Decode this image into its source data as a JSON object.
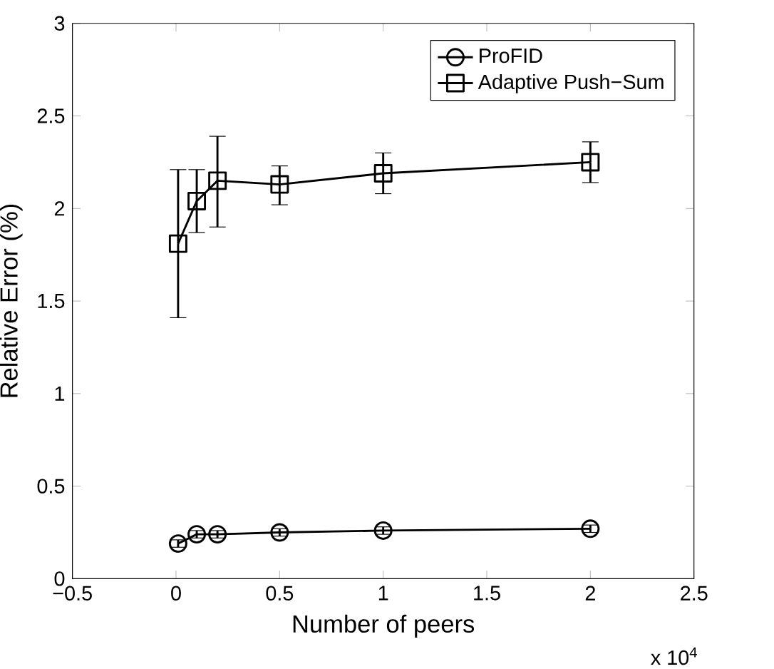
{
  "chart_data": {
    "type": "line",
    "xlabel": "Number of peers",
    "ylabel": "Relative Error (%)",
    "x": [
      0.01,
      0.1,
      0.2,
      0.5,
      1,
      2
    ],
    "series": [
      {
        "name": "ProFID",
        "color": "#000000",
        "marker": "circle",
        "values": [
          0.19,
          0.24,
          0.24,
          0.25,
          0.26,
          0.27
        ],
        "errors": [
          0.02,
          0.02,
          0.02,
          0.02,
          0.02,
          0.02
        ]
      },
      {
        "name": "Adaptive Push−Sum",
        "color": "#000000",
        "marker": "square",
        "values": [
          1.81,
          2.04,
          2.15,
          2.13,
          2.19,
          2.25
        ],
        "errors": [
          [
            1.41,
            2.21
          ],
          [
            1.87,
            2.21
          ],
          [
            1.9,
            2.39
          ],
          [
            2.02,
            2.23
          ],
          [
            2.08,
            2.3
          ],
          [
            2.14,
            2.36
          ]
        ]
      }
    ],
    "xlim": [
      -0.5,
      2.5
    ],
    "ylim": [
      0,
      3
    ],
    "xticks": [
      {
        "value": -0.5,
        "label": "−0.5"
      },
      0,
      0.5,
      1,
      1.5,
      2,
      2.5
    ],
    "yticks": [
      0,
      0.5,
      1,
      1.5,
      2,
      2.5,
      3
    ],
    "annotations": [
      "x 10$^{4}$"
    ],
    "legend": "top right",
    "line_style": "solid",
    "grid": false
  }
}
